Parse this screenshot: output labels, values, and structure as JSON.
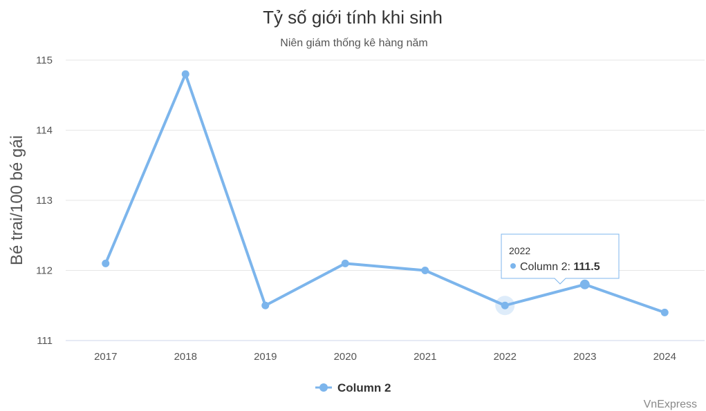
{
  "chart_data": {
    "type": "line",
    "title": "Tỷ số giới tính khi sinh",
    "subtitle": "Niên giám thống kê hàng năm",
    "xlabel": "",
    "ylabel": "Bé trai/100 bé gái",
    "categories": [
      "2017",
      "2018",
      "2019",
      "2020",
      "2021",
      "2022",
      "2023",
      "2024"
    ],
    "series": [
      {
        "name": "Column 2",
        "values": [
          112.1,
          114.8,
          111.5,
          112.1,
          112.0,
          111.5,
          111.8,
          111.4
        ]
      }
    ],
    "ylim": [
      111,
      115
    ],
    "yticks": [
      "111",
      "112",
      "113",
      "114",
      "115"
    ],
    "grid": true,
    "legend": "bottom-center",
    "color": "#7cb5ec",
    "tooltip": {
      "category": "2022",
      "series_label": "Column 2: ",
      "value": "111.5"
    },
    "credit": "VnExpress"
  }
}
